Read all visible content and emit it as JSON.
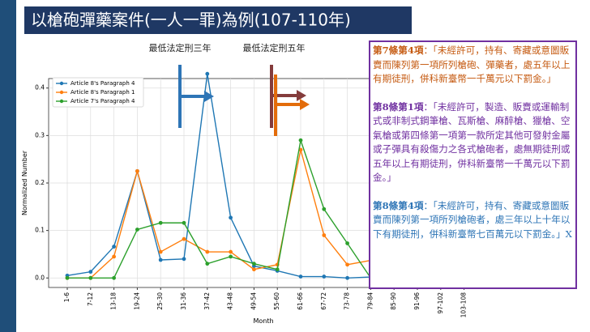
{
  "header": {
    "title": "以槍砲彈藥案件(一人一罪)為例(107-110年)"
  },
  "chart_data": {
    "type": "line",
    "annotations": [
      "最低法定刑三年",
      "最低法定刑五年"
    ],
    "xlabel": "Month",
    "ylabel": "Normalized Number",
    "categories": [
      "1-6",
      "7-12",
      "13-18",
      "19-24",
      "25-30",
      "31-36",
      "37-42",
      "43-48",
      "49-54",
      "55-60",
      "61-66",
      "67-72",
      "73-78",
      "79-84",
      "85-90",
      "91-96",
      "97-102",
      "103-108"
    ],
    "series": [
      {
        "name": "Article 8's Paragraph 4",
        "color": "#1f77b4",
        "values": [
          0.005,
          0.013,
          0.066,
          0.225,
          0.038,
          0.04,
          0.43,
          0.127,
          0.025,
          0.015,
          0.003,
          0.003,
          0.0,
          0.002,
          null,
          null,
          null,
          null
        ]
      },
      {
        "name": "Article 8's Paragraph 1",
        "color": "#ff7f0e",
        "values": [
          0.0,
          0.0,
          0.045,
          0.225,
          0.055,
          0.082,
          0.055,
          0.055,
          0.018,
          0.028,
          0.27,
          0.09,
          0.028,
          0.037,
          null,
          null,
          null,
          null
        ]
      },
      {
        "name": "Article 7's Paragraph 4",
        "color": "#2ca02c",
        "values": [
          0.0,
          0.0,
          0.0,
          0.102,
          0.116,
          0.116,
          0.03,
          0.045,
          0.03,
          0.018,
          0.29,
          0.145,
          0.073,
          0.0,
          null,
          null,
          null,
          null
        ]
      }
    ],
    "ylim": [
      -0.02,
      0.42
    ],
    "yticks": [
      {
        "value": 0,
        "label": "0.0"
      },
      {
        "value": 0.1,
        "label": "0.1"
      },
      {
        "value": 0.2,
        "label": "0.2"
      },
      {
        "value": 0.3,
        "label": "0.3"
      },
      {
        "value": 0.4,
        "label": "0.4"
      }
    ],
    "grid": true,
    "legend": "upper left"
  },
  "notes": [
    {
      "heading": "第7條第4項",
      "text": "：「未經許可，持有、寄藏或意圖販賣而陳列第一項所列槍砲、彈藥者，處五年以上有期徒刑，併科新臺幣一千萬元以下罰金。」",
      "color": "#c55a11"
    },
    {
      "heading": "第8條第1項",
      "text": "：「未經許可，製造、販賣或運輸制式或非制式鋼筆槍、瓦斯槍、麻醉槍、獵槍、空氣槍或第四條第一項第一款所定其他可發射金屬或子彈具有殺傷力之各式槍砲者，處無期徒刑或五年以上有期徒刑，併科新臺幣一千萬元以下罰金。」",
      "color": "#7030a0"
    },
    {
      "heading": "第8條第4項",
      "text": "：「未經許可，持有、寄藏或意圖販賣而陳列第一項所列槍砲者，處三年以上十年以下有期徒刑，併科新臺幣七百萬元以下罰金。」X",
      "color": "#2e75b6"
    }
  ]
}
